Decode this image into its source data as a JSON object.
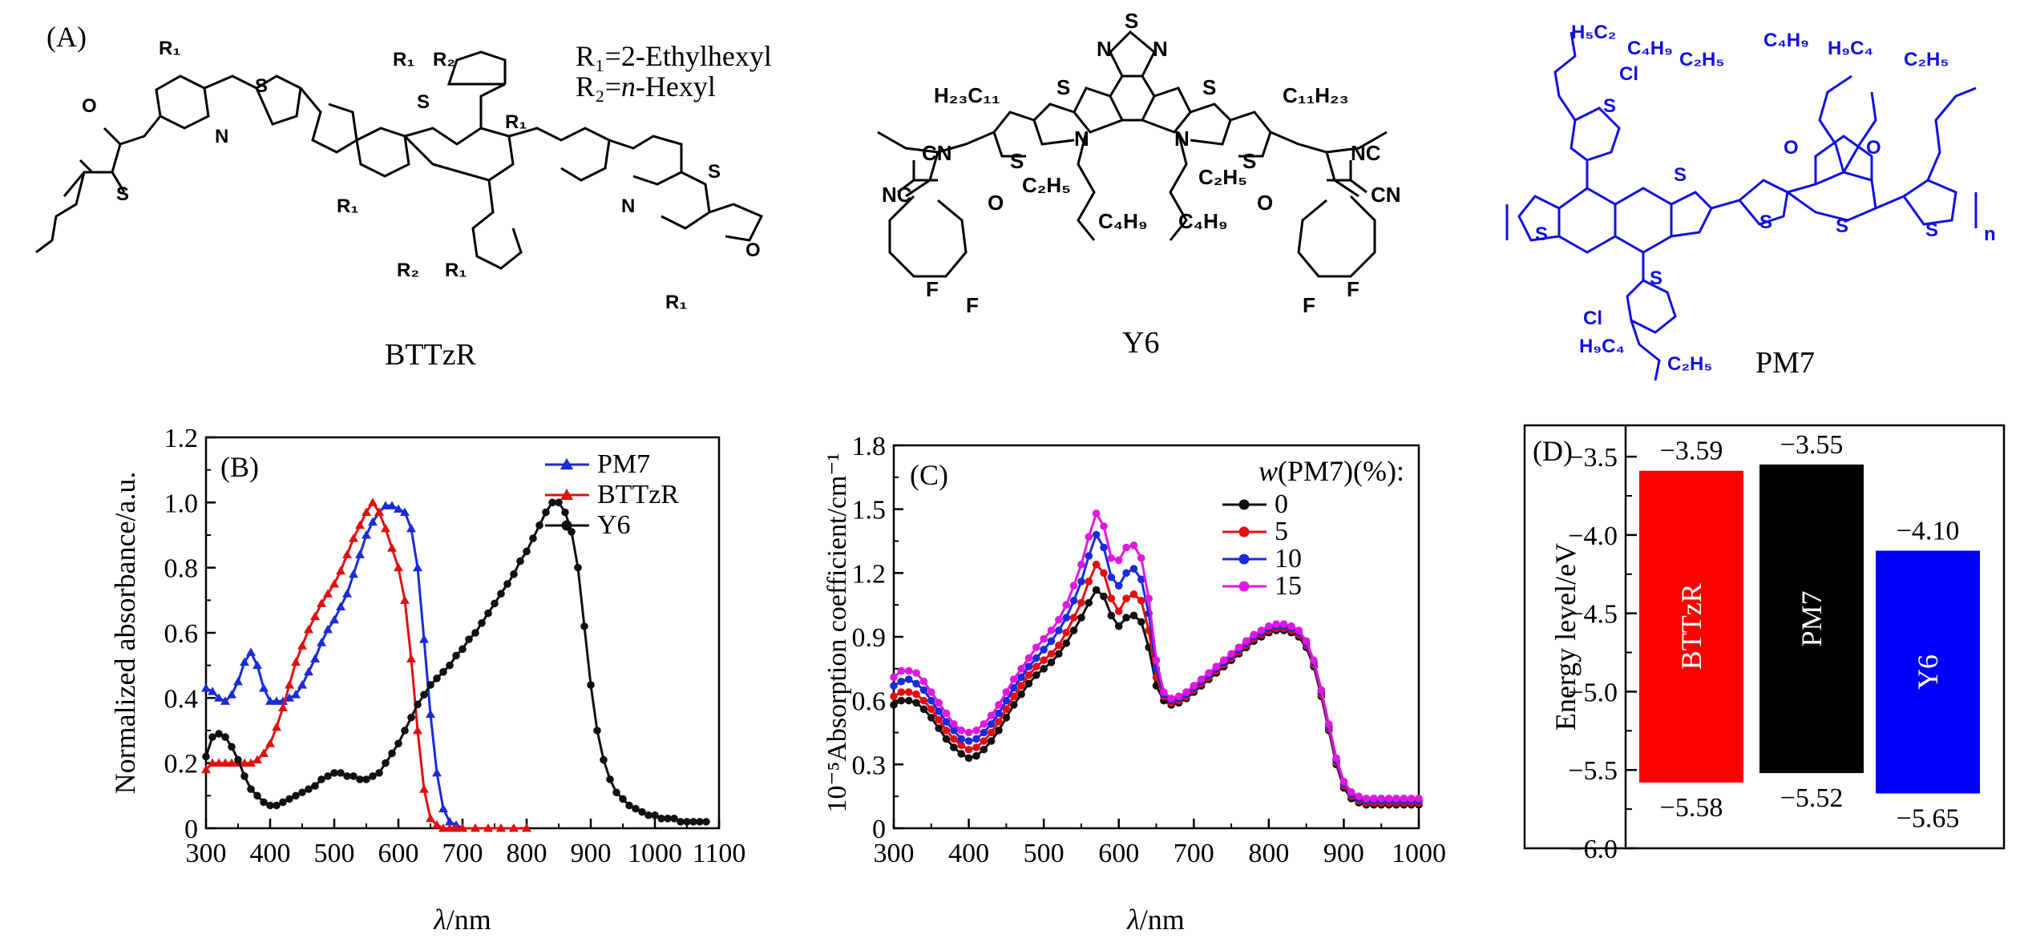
{
  "figure": {
    "panel_labels": {
      "a": "(A)",
      "b": "(B)",
      "c": "(C)",
      "d": "(D)"
    },
    "structures": {
      "bttzr": {
        "name": "BTTzR",
        "r1": "R₁=2-Ethylhexyl",
        "r2_prefix": "R₂=",
        "r2_italic": "n",
        "r2_suffix": "-Hexyl",
        "labels": {
          "R1": "R₁",
          "R2": "R₂",
          "S": "S",
          "N": "N",
          "O": "O"
        }
      },
      "y6": {
        "name": "Y6",
        "labels": {
          "chain_left": "H₂₃C₁₁",
          "chain_right": "C₁₁H₂₃",
          "c2h5": "C₂H₅",
          "c4h9": "C₄H₉",
          "cn": "CN",
          "nc": "NC",
          "F": "F",
          "O": "O",
          "N": "N",
          "S": "S"
        }
      },
      "pm7": {
        "name": "PM7",
        "color": "#1010e0",
        "labels": {
          "h5c2": "H₅C₂",
          "c4h9": "C₄H₉",
          "c2h5": "C₂H₅",
          "h9c4": "H₉C₄",
          "Cl": "Cl",
          "O": "O",
          "S": "S",
          "n": "n"
        }
      }
    }
  },
  "chart_data": [
    {
      "panel": "(B)",
      "type": "line",
      "xlabel_italic": "λ",
      "xlabel_rest": "/nm",
      "ylabel": "Normalized absorbance/a.u.",
      "xlim": [
        300,
        1100
      ],
      "ylim": [
        0,
        1.2
      ],
      "xticks": [
        "300",
        "400",
        "500",
        "600",
        "700",
        "800",
        "900",
        "1000",
        "1100"
      ],
      "yticks": [
        "0",
        "0.2",
        "0.4",
        "0.6",
        "0.8",
        "1.0",
        "1.2"
      ],
      "legend_position": "top-right",
      "series": [
        {
          "name": "PM7",
          "color": "#1a2bd9",
          "marker": "triangle",
          "x": [
            300,
            310,
            320,
            330,
            340,
            350,
            360,
            370,
            380,
            390,
            400,
            410,
            420,
            430,
            440,
            450,
            460,
            470,
            480,
            490,
            500,
            510,
            520,
            530,
            540,
            550,
            560,
            570,
            580,
            590,
            600,
            610,
            620,
            630,
            640,
            650,
            660,
            670,
            680,
            690,
            700,
            720,
            740,
            760,
            780,
            800
          ],
          "y": [
            0.43,
            0.42,
            0.4,
            0.39,
            0.41,
            0.45,
            0.51,
            0.54,
            0.5,
            0.43,
            0.39,
            0.39,
            0.39,
            0.4,
            0.41,
            0.44,
            0.48,
            0.52,
            0.57,
            0.61,
            0.64,
            0.68,
            0.72,
            0.78,
            0.84,
            0.9,
            0.94,
            0.97,
            0.99,
            0.99,
            0.98,
            0.97,
            0.92,
            0.8,
            0.58,
            0.35,
            0.17,
            0.06,
            0.02,
            0.01,
            0,
            0,
            0,
            0,
            0,
            0
          ]
        },
        {
          "name": "BTTzR",
          "color": "#e01010",
          "marker": "triangle",
          "x": [
            300,
            310,
            320,
            330,
            340,
            350,
            360,
            370,
            380,
            390,
            400,
            410,
            420,
            430,
            440,
            450,
            460,
            470,
            480,
            490,
            500,
            510,
            520,
            530,
            540,
            550,
            560,
            570,
            580,
            590,
            600,
            610,
            620,
            630,
            640,
            650,
            660,
            670,
            680,
            690,
            700,
            720,
            740,
            760,
            780,
            800
          ],
          "y": [
            0.18,
            0.2,
            0.2,
            0.2,
            0.2,
            0.2,
            0.2,
            0.2,
            0.21,
            0.23,
            0.26,
            0.31,
            0.37,
            0.44,
            0.51,
            0.56,
            0.61,
            0.65,
            0.69,
            0.72,
            0.75,
            0.79,
            0.84,
            0.89,
            0.93,
            0.97,
            1.0,
            0.97,
            0.92,
            0.86,
            0.8,
            0.7,
            0.52,
            0.3,
            0.12,
            0.03,
            0.01,
            0,
            0,
            0,
            0,
            0,
            0,
            0,
            0,
            0
          ]
        },
        {
          "name": "Y6",
          "color": "#111111",
          "marker": "circle",
          "x": [
            300,
            310,
            320,
            330,
            340,
            350,
            360,
            370,
            380,
            390,
            400,
            410,
            420,
            430,
            440,
            450,
            460,
            470,
            480,
            490,
            500,
            510,
            520,
            530,
            540,
            550,
            560,
            570,
            580,
            590,
            600,
            610,
            620,
            630,
            640,
            650,
            660,
            670,
            680,
            690,
            700,
            710,
            720,
            730,
            740,
            750,
            760,
            770,
            780,
            790,
            800,
            810,
            820,
            830,
            840,
            850,
            860,
            870,
            880,
            890,
            900,
            910,
            920,
            930,
            940,
            950,
            960,
            970,
            980,
            990,
            1000,
            1010,
            1020,
            1030,
            1040,
            1050,
            1060,
            1070,
            1080
          ],
          "y": [
            0.22,
            0.28,
            0.29,
            0.28,
            0.25,
            0.21,
            0.16,
            0.12,
            0.1,
            0.08,
            0.07,
            0.07,
            0.08,
            0.09,
            0.1,
            0.11,
            0.12,
            0.13,
            0.15,
            0.16,
            0.17,
            0.17,
            0.16,
            0.16,
            0.15,
            0.15,
            0.16,
            0.17,
            0.2,
            0.23,
            0.26,
            0.3,
            0.34,
            0.38,
            0.41,
            0.44,
            0.46,
            0.48,
            0.5,
            0.53,
            0.55,
            0.58,
            0.6,
            0.63,
            0.66,
            0.69,
            0.72,
            0.75,
            0.78,
            0.82,
            0.85,
            0.89,
            0.93,
            0.97,
            1.0,
            1.0,
            0.97,
            0.91,
            0.8,
            0.62,
            0.44,
            0.3,
            0.21,
            0.15,
            0.11,
            0.09,
            0.07,
            0.06,
            0.05,
            0.04,
            0.04,
            0.03,
            0.03,
            0.03,
            0.02,
            0.02,
            0.02,
            0.02,
            0.02
          ]
        }
      ]
    },
    {
      "panel": "(C)",
      "type": "line",
      "xlabel_italic": "λ",
      "xlabel_rest": "/nm",
      "ylabel": "10⁻⁵Absorption coefficient/cm⁻¹",
      "xlim": [
        300,
        1000
      ],
      "ylim": [
        0,
        1.8
      ],
      "xticks": [
        "300",
        "400",
        "500",
        "600",
        "700",
        "800",
        "900",
        "1000"
      ],
      "yticks": [
        "0",
        "0.3",
        "0.6",
        "0.9",
        "1.2",
        "1.5",
        "1.8"
      ],
      "legend_title_italic": "w",
      "legend_title_rest": "(PM7)(%):",
      "legend_position": "top-right",
      "x": [
        300,
        310,
        320,
        330,
        340,
        350,
        360,
        370,
        380,
        390,
        400,
        410,
        420,
        430,
        440,
        450,
        460,
        470,
        480,
        490,
        500,
        510,
        520,
        530,
        540,
        550,
        560,
        570,
        580,
        590,
        600,
        610,
        620,
        630,
        640,
        650,
        660,
        670,
        680,
        690,
        700,
        710,
        720,
        730,
        740,
        750,
        760,
        770,
        780,
        790,
        800,
        810,
        820,
        830,
        840,
        850,
        860,
        870,
        880,
        890,
        900,
        910,
        920,
        930,
        940,
        950,
        960,
        970,
        980,
        990,
        1000
      ],
      "series": [
        {
          "name": "0",
          "color": "#111111",
          "marker": "circle",
          "y": [
            0.58,
            0.6,
            0.6,
            0.59,
            0.56,
            0.52,
            0.47,
            0.42,
            0.38,
            0.35,
            0.33,
            0.34,
            0.37,
            0.41,
            0.46,
            0.52,
            0.58,
            0.63,
            0.68,
            0.72,
            0.75,
            0.78,
            0.82,
            0.87,
            0.93,
            0.99,
            1.06,
            1.12,
            1.09,
            1.0,
            0.95,
            0.99,
            1.0,
            0.97,
            0.85,
            0.67,
            0.6,
            0.58,
            0.59,
            0.61,
            0.64,
            0.67,
            0.7,
            0.73,
            0.76,
            0.79,
            0.82,
            0.85,
            0.88,
            0.9,
            0.92,
            0.93,
            0.93,
            0.92,
            0.9,
            0.85,
            0.76,
            0.62,
            0.46,
            0.3,
            0.19,
            0.14,
            0.12,
            0.11,
            0.11,
            0.11,
            0.11,
            0.11,
            0.11,
            0.11,
            0.11
          ]
        },
        {
          "name": "5",
          "color": "#e01010",
          "marker": "circle",
          "y": [
            0.62,
            0.64,
            0.64,
            0.63,
            0.6,
            0.56,
            0.51,
            0.46,
            0.42,
            0.39,
            0.37,
            0.38,
            0.41,
            0.45,
            0.5,
            0.56,
            0.62,
            0.67,
            0.72,
            0.76,
            0.79,
            0.82,
            0.86,
            0.92,
            0.99,
            1.06,
            1.16,
            1.24,
            1.2,
            1.08,
            1.02,
            1.08,
            1.1,
            1.07,
            0.93,
            0.71,
            0.62,
            0.59,
            0.6,
            0.62,
            0.65,
            0.68,
            0.71,
            0.74,
            0.77,
            0.8,
            0.83,
            0.86,
            0.89,
            0.91,
            0.93,
            0.94,
            0.94,
            0.93,
            0.91,
            0.86,
            0.77,
            0.63,
            0.47,
            0.31,
            0.2,
            0.15,
            0.13,
            0.12,
            0.12,
            0.12,
            0.12,
            0.12,
            0.12,
            0.12,
            0.12
          ]
        },
        {
          "name": "10",
          "color": "#1a2bd9",
          "marker": "circle",
          "y": [
            0.67,
            0.69,
            0.7,
            0.68,
            0.65,
            0.6,
            0.55,
            0.5,
            0.46,
            0.42,
            0.41,
            0.42,
            0.45,
            0.49,
            0.54,
            0.6,
            0.66,
            0.71,
            0.76,
            0.8,
            0.84,
            0.88,
            0.93,
            0.99,
            1.07,
            1.16,
            1.28,
            1.38,
            1.32,
            1.18,
            1.14,
            1.2,
            1.22,
            1.17,
            1.01,
            0.75,
            0.63,
            0.6,
            0.61,
            0.63,
            0.66,
            0.69,
            0.72,
            0.75,
            0.78,
            0.81,
            0.84,
            0.87,
            0.9,
            0.92,
            0.94,
            0.95,
            0.95,
            0.94,
            0.92,
            0.87,
            0.78,
            0.64,
            0.48,
            0.32,
            0.21,
            0.16,
            0.14,
            0.13,
            0.13,
            0.13,
            0.13,
            0.13,
            0.13,
            0.13,
            0.13
          ]
        },
        {
          "name": "15",
          "color": "#e018e0",
          "marker": "circle",
          "y": [
            0.71,
            0.74,
            0.74,
            0.73,
            0.69,
            0.64,
            0.59,
            0.54,
            0.49,
            0.46,
            0.45,
            0.46,
            0.49,
            0.53,
            0.58,
            0.64,
            0.7,
            0.75,
            0.8,
            0.85,
            0.89,
            0.93,
            0.98,
            1.05,
            1.14,
            1.24,
            1.37,
            1.48,
            1.42,
            1.27,
            1.26,
            1.32,
            1.33,
            1.27,
            1.08,
            0.79,
            0.64,
            0.61,
            0.62,
            0.64,
            0.67,
            0.7,
            0.73,
            0.76,
            0.79,
            0.82,
            0.85,
            0.88,
            0.91,
            0.93,
            0.95,
            0.96,
            0.96,
            0.95,
            0.93,
            0.88,
            0.79,
            0.65,
            0.49,
            0.33,
            0.22,
            0.17,
            0.15,
            0.14,
            0.14,
            0.14,
            0.14,
            0.14,
            0.14,
            0.14,
            0.14
          ]
        }
      ]
    },
    {
      "panel": "(D)",
      "type": "bar",
      "ylabel": "Energy level/eV",
      "ylim": [
        -6.0,
        -3.3
      ],
      "yticks": [
        "-3.5",
        "-4.0",
        "-4.5",
        "-5.0",
        "-5.5",
        "-6.0"
      ],
      "bars": [
        {
          "name": "BTTzR",
          "lumo": -3.59,
          "homo": -5.58,
          "lumo_label": "−3.59",
          "homo_label": "−5.58",
          "color": "#ff0000"
        },
        {
          "name": "PM7",
          "lumo": -3.55,
          "homo": -5.52,
          "lumo_label": "−3.55",
          "homo_label": "−5.52",
          "color": "#000000"
        },
        {
          "name": "Y6",
          "lumo": -4.1,
          "homo": -5.65,
          "lumo_label": "−4.10",
          "homo_label": "−5.65",
          "color": "#0000ff"
        }
      ]
    }
  ]
}
